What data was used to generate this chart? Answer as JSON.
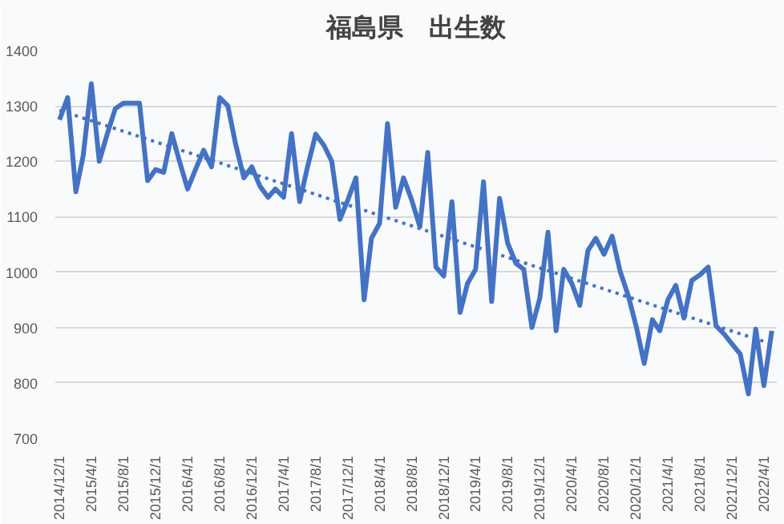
{
  "chart_data": {
    "type": "line",
    "title": "福島県　出生数",
    "x": [
      "2014-12",
      "2015-01",
      "2015-02",
      "2015-03",
      "2015-04",
      "2015-05",
      "2015-06",
      "2015-07",
      "2015-08",
      "2015-09",
      "2015-10",
      "2015-11",
      "2015-12",
      "2016-01",
      "2016-02",
      "2016-03",
      "2016-04",
      "2016-05",
      "2016-06",
      "2016-07",
      "2016-08",
      "2016-09",
      "2016-10",
      "2016-11",
      "2016-12",
      "2017-01",
      "2017-02",
      "2017-03",
      "2017-04",
      "2017-05",
      "2017-06",
      "2017-07",
      "2017-08",
      "2017-09",
      "2017-10",
      "2017-11",
      "2017-12",
      "2018-01",
      "2018-02",
      "2018-03",
      "2018-04",
      "2018-05",
      "2018-06",
      "2018-07",
      "2018-08",
      "2018-09",
      "2018-10",
      "2018-11",
      "2018-12",
      "2019-01",
      "2019-02",
      "2019-03",
      "2019-04",
      "2019-05",
      "2019-06",
      "2019-07",
      "2019-08",
      "2019-09",
      "2019-10",
      "2019-11",
      "2019-12",
      "2020-01",
      "2020-02",
      "2020-03",
      "2020-04",
      "2020-05",
      "2020-06",
      "2020-07",
      "2020-08",
      "2020-09",
      "2020-10",
      "2020-11",
      "2020-12",
      "2021-01",
      "2021-02",
      "2021-03",
      "2021-04",
      "2021-05",
      "2021-06",
      "2021-07",
      "2021-08",
      "2021-09",
      "2021-10",
      "2021-11",
      "2021-12",
      "2022-01",
      "2022-02",
      "2022-03",
      "2022-04",
      "2022-05"
    ],
    "series": [
      {
        "color": "#4472c4",
        "line_style": "solid",
        "values": [
          1275,
          1315,
          1145,
          1210,
          1340,
          1200,
          1250,
          1295,
          1305,
          1305,
          1305,
          1165,
          1185,
          1180,
          1250,
          1200,
          1150,
          1185,
          1220,
          1190,
          1315,
          1300,
          1230,
          1170,
          1190,
          1155,
          1135,
          1150,
          1135,
          1250,
          1127,
          1190,
          1249,
          1229,
          1200,
          1095,
          1130,
          1170,
          950,
          1061,
          1088,
          1268,
          1117,
          1170,
          1130,
          1082,
          1216,
          1009,
          993,
          1127,
          927,
          979,
          1005,
          1163,
          947,
          1133,
          1052,
          1016,
          1005,
          900,
          953,
          1072,
          894,
          1005,
          979,
          940,
          1039,
          1061,
          1032,
          1065,
          1002,
          958,
          903,
          835,
          914,
          894,
          950,
          976,
          917,
          985,
          995,
          1009,
          903,
          888,
          870,
          852,
          780,
          897,
          795,
          894
        ]
      },
      {
        "type": "line",
        "color": "#4472c4",
        "line_style": "dotted",
        "x": [
          "2014-12",
          "2022-05"
        ],
        "values": [
          1292,
          870
        ]
      }
    ],
    "xlim": [
      "2014-11-15",
      "2022-05-20"
    ],
    "xticks": [
      {
        "value": "2014-12",
        "label": "2014/12/1"
      },
      {
        "value": "2015-04",
        "label": "2015/4/1"
      },
      {
        "value": "2015-08",
        "label": "2015/8/1"
      },
      {
        "value": "2015-12",
        "label": "2015/12/1"
      },
      {
        "value": "2016-04",
        "label": "2016/4/1"
      },
      {
        "value": "2016-08",
        "label": "2016/8/1"
      },
      {
        "value": "2016-12",
        "label": "2016/12/1"
      },
      {
        "value": "2017-04",
        "label": "2017/4/1"
      },
      {
        "value": "2017-08",
        "label": "2017/8/1"
      },
      {
        "value": "2017-12",
        "label": "2017/12/1"
      },
      {
        "value": "2018-04",
        "label": "2018/4/1"
      },
      {
        "value": "2018-08",
        "label": "2018/8/1"
      },
      {
        "value": "2018-12",
        "label": "2018/12/1"
      },
      {
        "value": "2019-04",
        "label": "2019/4/1"
      },
      {
        "value": "2019-08",
        "label": "2019/8/1"
      },
      {
        "value": "2019-12",
        "label": "2019/12/1"
      },
      {
        "value": "2020-04",
        "label": "2020/4/1"
      },
      {
        "value": "2020-08",
        "label": "2020/8/1"
      },
      {
        "value": "2020-12",
        "label": "2020/12/1"
      },
      {
        "value": "2021-04",
        "label": "2021/4/1"
      },
      {
        "value": "2021-08",
        "label": "2021/8/1"
      },
      {
        "value": "2021-12",
        "label": "2021/12/1"
      },
      {
        "value": "2022-04",
        "label": "2022/4/1"
      }
    ],
    "ylim": [
      700,
      1400
    ],
    "yticks": [
      700,
      800,
      900,
      1000,
      1100,
      1200,
      1300,
      1400
    ],
    "grid": "y",
    "marker": "none"
  }
}
